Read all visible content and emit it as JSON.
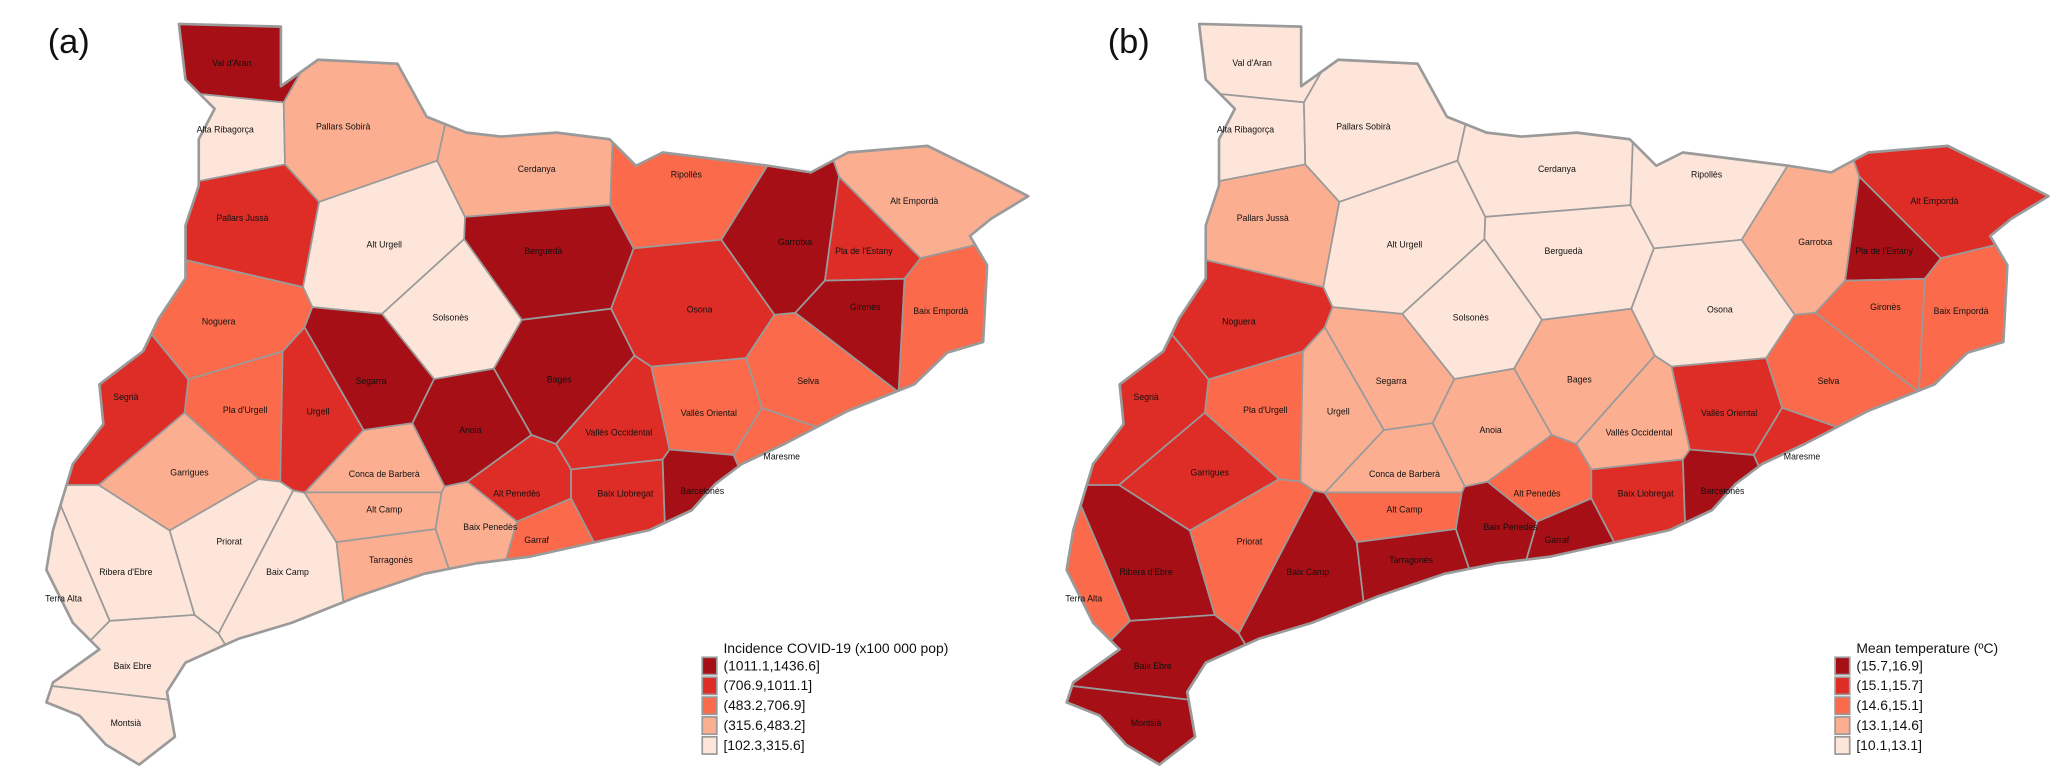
{
  "chart_data": {
    "type": "choropleth",
    "comarcas": [
      "Val d'Aran",
      "Alta Ribagorça",
      "Pallars Sobirà",
      "Pallars Jussà",
      "Alt Urgell",
      "Cerdanya",
      "Ripollès",
      "Alt Empordà",
      "Garrotxa",
      "Pla de l'Estany",
      "Berguedà",
      "Solsonès",
      "Osona",
      "Gironès",
      "Baix Empordà",
      "Noguera",
      "Selva",
      "Bages",
      "Segarra",
      "Pla d'Urgell",
      "Urgell",
      "Segrià",
      "Vallès Oriental",
      "Anoia",
      "Maresme",
      "Vallès Occidental",
      "Garrigues",
      "Conca de Barberà",
      "Alt Camp",
      "Alt Penedès",
      "Baix Llobregat",
      "Barcelonès",
      "Baix Penedès",
      "Garraf",
      "Tarragonès",
      "Priorat",
      "Baix Camp",
      "Ribera d'Ebre",
      "Terra Alta",
      "Baix Ebre",
      "Montsià"
    ],
    "colors": [
      "#a50f15",
      "#de2d26",
      "#fb6a4a",
      "#fcae91",
      "#fee5d9"
    ],
    "maps": [
      {
        "panel": "(a)",
        "legend_title": "Incidence COVID-19 (x100 000 pop)",
        "bins": [
          "(1011.1,1436.6]",
          "(706.9,1011.1]",
          "(483.2,706.9]",
          "(315.6,483.2]",
          "[102.3,315.6]"
        ],
        "bin_index": [
          0,
          4,
          3,
          1,
          4,
          3,
          2,
          3,
          0,
          1,
          0,
          4,
          1,
          0,
          2,
          2,
          2,
          0,
          0,
          2,
          1,
          1,
          2,
          0,
          2,
          1,
          3,
          3,
          3,
          1,
          1,
          0,
          3,
          2,
          3,
          4,
          4,
          4,
          4,
          4,
          4
        ]
      },
      {
        "panel": "(b)",
        "legend_title": "Mean temperature (ºC)",
        "bins": [
          "(15.7,16.9]",
          "(15.1,15.7]",
          "(14.6,15.1]",
          "(13.1,14.6]",
          "[10.1,13.1]"
        ],
        "bin_index": [
          4,
          4,
          4,
          3,
          4,
          4,
          4,
          1,
          3,
          0,
          4,
          4,
          4,
          2,
          2,
          1,
          2,
          3,
          3,
          2,
          3,
          1,
          1,
          3,
          1,
          3,
          1,
          3,
          2,
          2,
          1,
          0,
          0,
          0,
          0,
          2,
          0,
          0,
          2,
          0,
          0
        ]
      }
    ]
  }
}
